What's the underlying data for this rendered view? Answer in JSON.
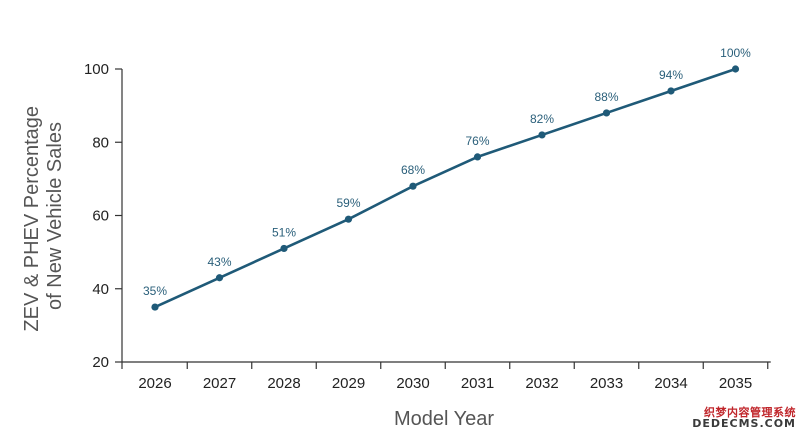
{
  "chart_data": {
    "type": "line",
    "xlabel": "Model Year",
    "ylabel_lines": [
      "ZEV & PHEV Percentage",
      "of New Vehicle Sales"
    ],
    "x": [
      2026,
      2027,
      2028,
      2029,
      2030,
      2031,
      2032,
      2033,
      2034,
      2035
    ],
    "values": [
      35,
      43,
      51,
      59,
      68,
      76,
      82,
      88,
      94,
      100
    ],
    "data_labels": [
      "35%",
      "43%",
      "51%",
      "59%",
      "68%",
      "76%",
      "82%",
      "88%",
      "94%",
      "100%"
    ],
    "yticks": [
      20,
      40,
      60,
      80,
      100
    ],
    "ylim": [
      20,
      100
    ],
    "grid": false,
    "line_color": "#1f5a78"
  },
  "watermark": {
    "line1": "织梦内容管理系统",
    "line2": "DEDECMS.COM"
  }
}
